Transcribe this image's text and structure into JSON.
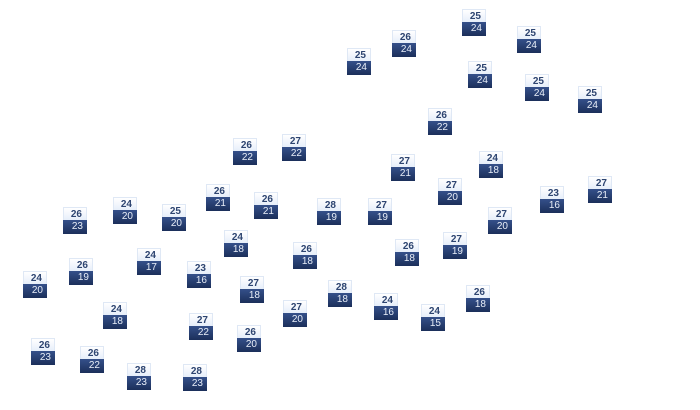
{
  "markers": [
    {
      "max": "25",
      "min": "24"
    },
    {
      "max": "26",
      "min": "24"
    },
    {
      "max": "25",
      "min": "24"
    },
    {
      "max": "25",
      "min": "24"
    },
    {
      "max": "25",
      "min": "24"
    },
    {
      "max": "25",
      "min": "24"
    },
    {
      "max": "25",
      "min": "24"
    },
    {
      "max": "26",
      "min": "22"
    },
    {
      "max": "26",
      "min": "22"
    },
    {
      "max": "27",
      "min": "22"
    },
    {
      "max": "27",
      "min": "21"
    },
    {
      "max": "24",
      "min": "18"
    },
    {
      "max": "27",
      "min": "20"
    },
    {
      "max": "27",
      "min": "21"
    },
    {
      "max": "23",
      "min": "16"
    },
    {
      "max": "26",
      "min": "21"
    },
    {
      "max": "26",
      "min": "21"
    },
    {
      "max": "24",
      "min": "20"
    },
    {
      "max": "25",
      "min": "20"
    },
    {
      "max": "28",
      "min": "19"
    },
    {
      "max": "27",
      "min": "19"
    },
    {
      "max": "26",
      "min": "23"
    },
    {
      "max": "27",
      "min": "20"
    },
    {
      "max": "24",
      "min": "18"
    },
    {
      "max": "26",
      "min": "18"
    },
    {
      "max": "27",
      "min": "19"
    },
    {
      "max": "26",
      "min": "18"
    },
    {
      "max": "24",
      "min": "17"
    },
    {
      "max": "26",
      "min": "19"
    },
    {
      "max": "23",
      "min": "16"
    },
    {
      "max": "24",
      "min": "20"
    },
    {
      "max": "27",
      "min": "18"
    },
    {
      "max": "28",
      "min": "18"
    },
    {
      "max": "26",
      "min": "18"
    },
    {
      "max": "24",
      "min": "16"
    },
    {
      "max": "24",
      "min": "18"
    },
    {
      "max": "27",
      "min": "20"
    },
    {
      "max": "24",
      "min": "15"
    },
    {
      "max": "27",
      "min": "22"
    },
    {
      "max": "26",
      "min": "20"
    },
    {
      "max": "26",
      "min": "23"
    },
    {
      "max": "26",
      "min": "22"
    },
    {
      "max": "28",
      "min": "23"
    },
    {
      "max": "28",
      "min": "23"
    }
  ],
  "colors": {
    "max_bg": "#eef3fb",
    "min_bg": "#243a6a",
    "max_text": "#2d4470",
    "min_text": "#e8eef8"
  }
}
